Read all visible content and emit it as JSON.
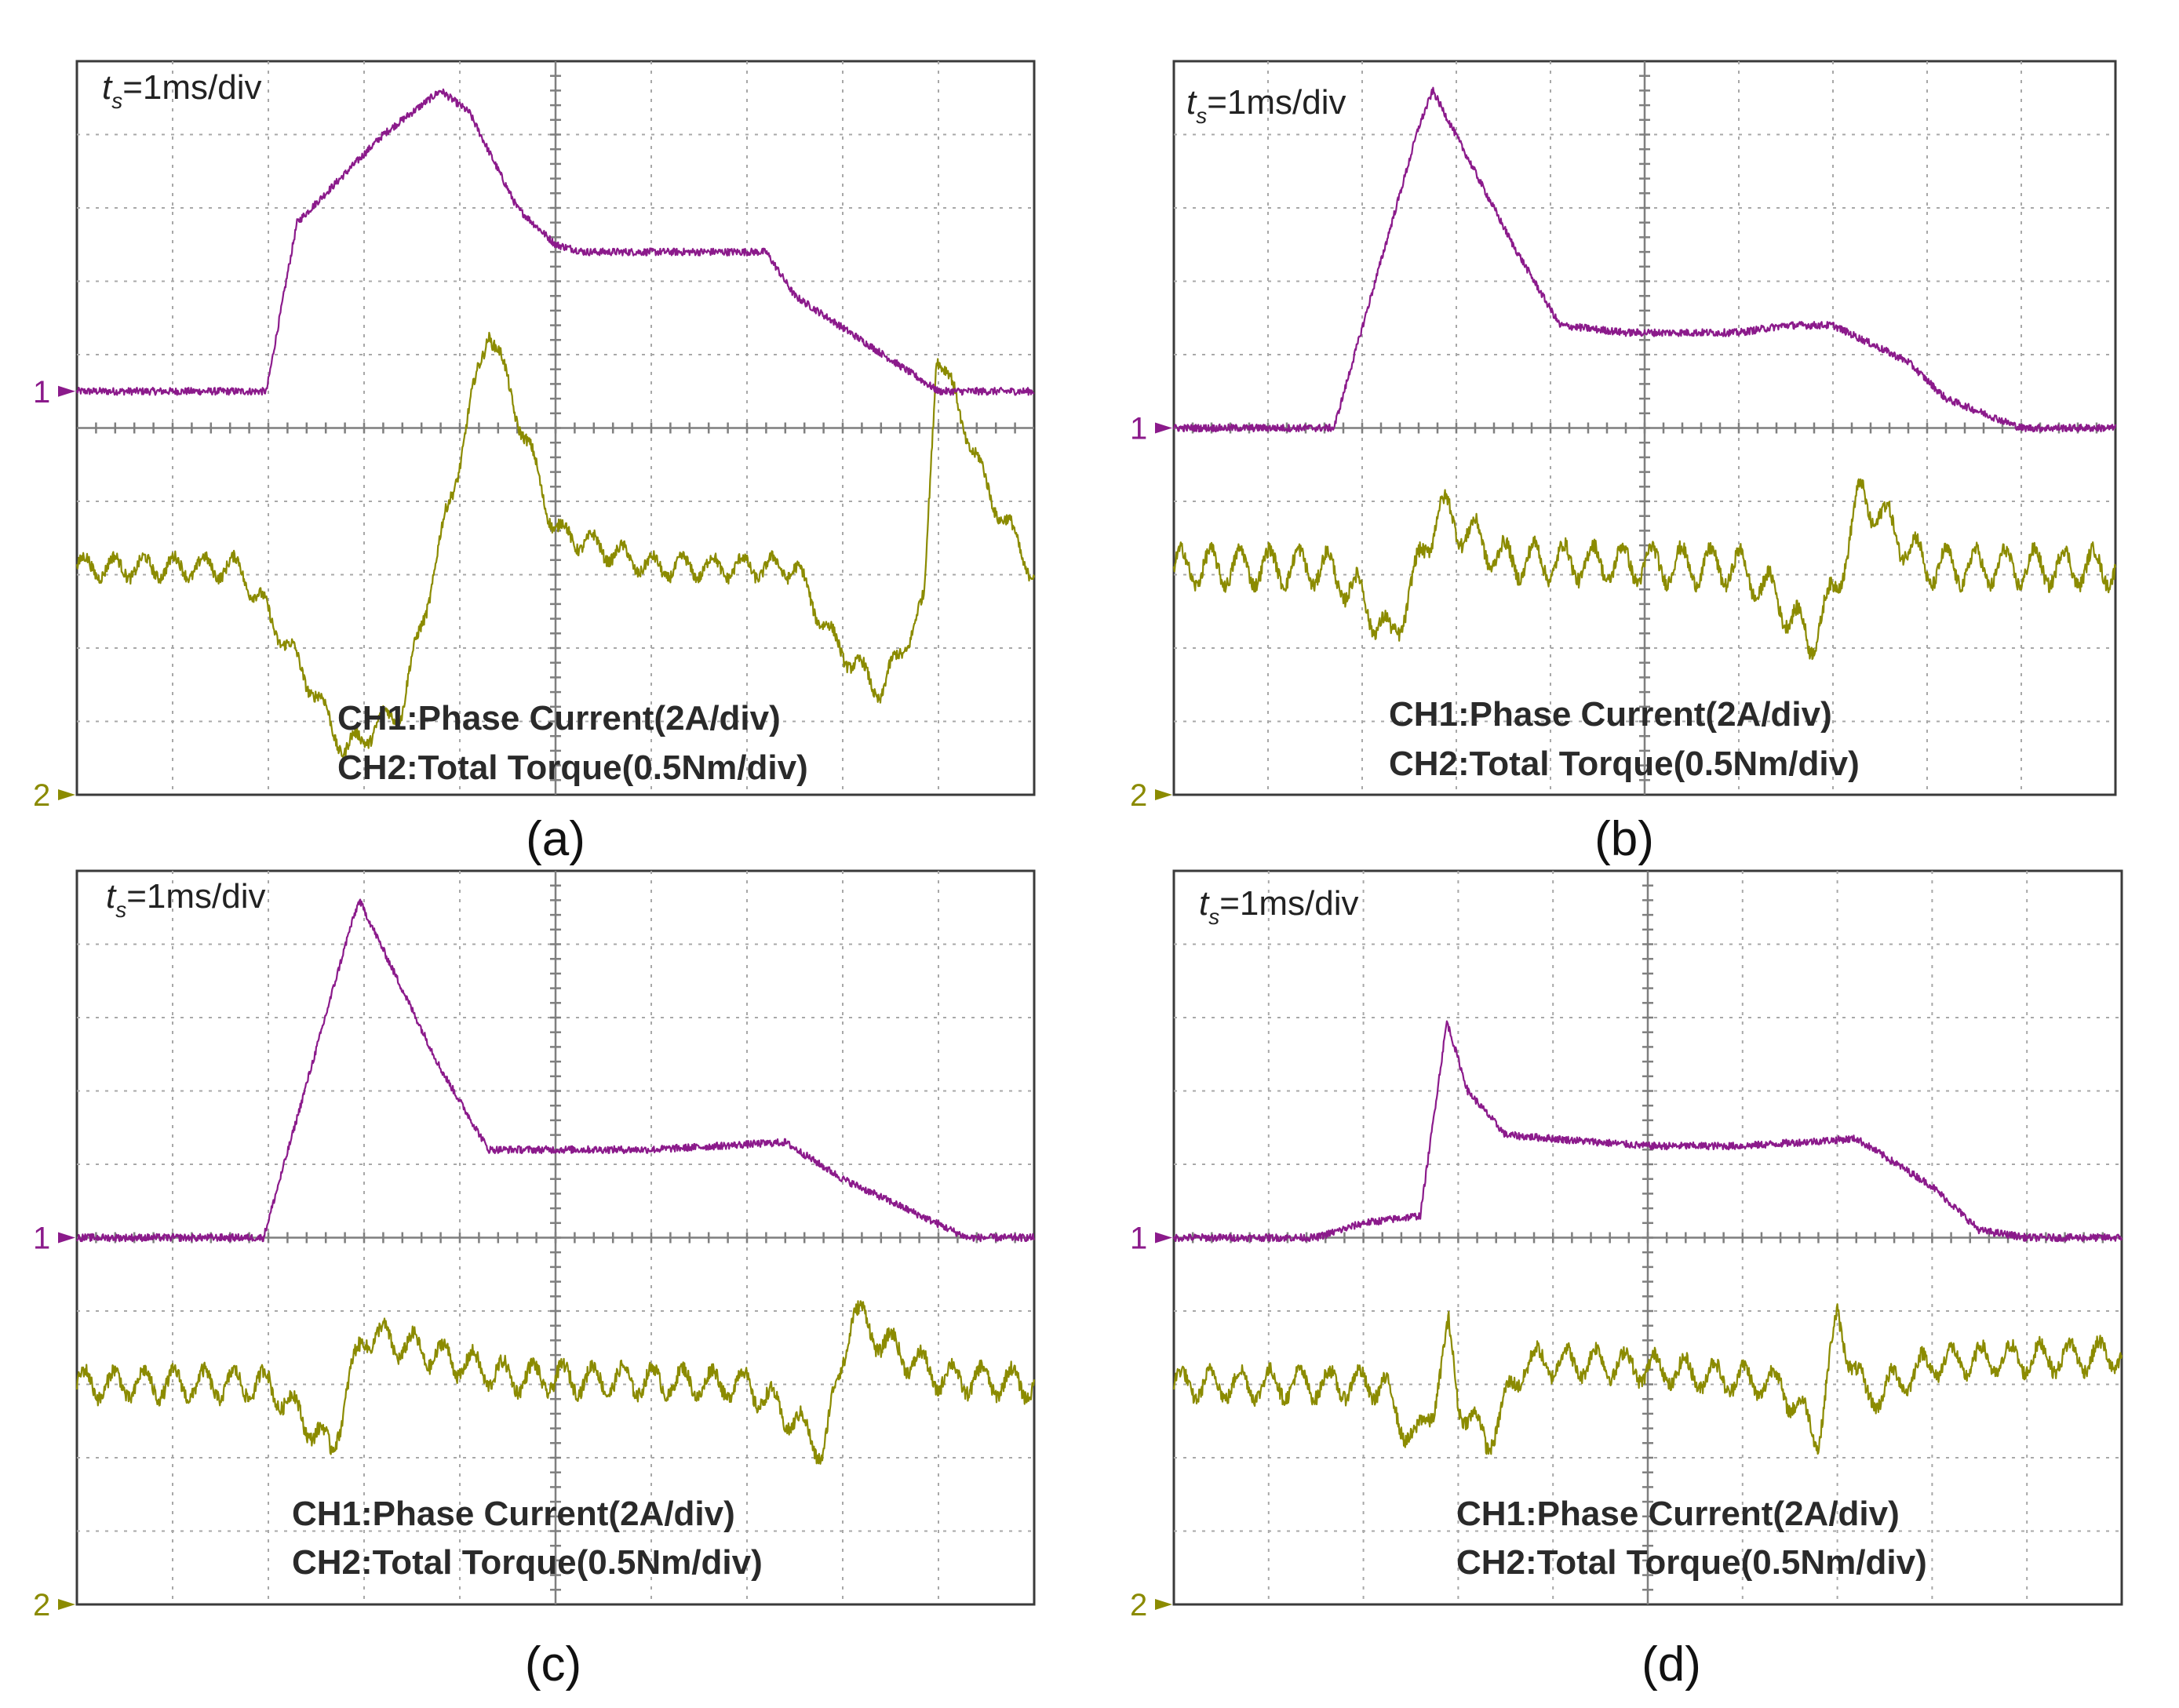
{
  "colors": {
    "ch1": "#8b1a8b",
    "ch2": "#8b8b00"
  },
  "chart_data": [
    {
      "type": "line",
      "panel_id": "a",
      "caption": "(a)",
      "time_scale_prefix": "t",
      "time_scale_sub": "s",
      "time_scale_value": "=1ms/div",
      "x_unit": "div",
      "xlim": [
        0,
        10
      ],
      "ylim_div": [
        -5,
        5
      ],
      "ch1_label": "CH1:Phase Current(2A/div)",
      "ch2_label": "CH2:Total Torque(0.5Nm/div)",
      "ch1_marker": "1",
      "ch2_marker": "2",
      "ch1_ground_div": 0.5,
      "ch2_ground_div": -5,
      "series": [
        {
          "name": "CH1",
          "noise": 0.05,
          "ripple": 0,
          "x": [
            0,
            1.98,
            2.2,
            2.3,
            2.6,
            3.2,
            3.8,
            4.1,
            4.6,
            5.0,
            5.3,
            6.0,
            7.2,
            7.5,
            9.0,
            10.0
          ],
          "y": [
            0.5,
            0.5,
            2.1,
            2.8,
            3.2,
            4.0,
            4.6,
            4.3,
            3.0,
            2.5,
            2.4,
            2.4,
            2.4,
            1.8,
            0.5,
            0.5
          ]
        },
        {
          "name": "CH2",
          "noise": 0.08,
          "ripple": 0.15,
          "x": [
            0,
            1.7,
            2.4,
            2.8,
            3.4,
            3.95,
            4.3,
            5.0,
            6.0,
            7.5,
            7.9,
            8.4,
            8.85,
            8.98,
            9.5,
            10.0
          ],
          "y": [
            -1.9,
            -1.9,
            -3.4,
            -4.4,
            -3.8,
            -0.7,
            1.4,
            -1.4,
            -1.9,
            -1.9,
            -2.9,
            -3.6,
            -2.4,
            1.1,
            -0.8,
            -2.0
          ]
        }
      ]
    },
    {
      "type": "line",
      "panel_id": "b",
      "caption": "(b)",
      "time_scale_prefix": "t",
      "time_scale_sub": "s",
      "time_scale_value": "=1ms/div",
      "x_unit": "div",
      "xlim": [
        0,
        10
      ],
      "ylim_div": [
        -5,
        5
      ],
      "ch1_label": "CH1:Phase Current(2A/div)",
      "ch2_label": "CH2:Total Torque(0.5Nm/div)",
      "ch1_marker": "1",
      "ch2_marker": "2",
      "ch1_ground_div": 0,
      "ch2_ground_div": -5,
      "series": [
        {
          "name": "CH1",
          "noise": 0.05,
          "ripple": 0,
          "x": [
            0,
            1.7,
            2.6,
            2.75,
            3.6,
            4.1,
            4.8,
            6.0,
            6.5,
            7.0,
            7.8,
            8.2,
            9.0,
            10.0
          ],
          "y": [
            0,
            0,
            4.1,
            4.6,
            2.5,
            1.4,
            1.3,
            1.3,
            1.4,
            1.4,
            0.9,
            0.4,
            0,
            0
          ]
        },
        {
          "name": "CH2",
          "noise": 0.1,
          "ripple": 0.25,
          "x": [
            0,
            1.6,
            2.0,
            2.3,
            2.55,
            2.8,
            3.5,
            6.0,
            6.4,
            6.75,
            7.0,
            7.3,
            8.0,
            10.0
          ],
          "y": [
            -1.9,
            -1.9,
            -2.3,
            -2.9,
            -2.1,
            -1.1,
            -1.8,
            -1.9,
            -2.3,
            -2.9,
            -2.3,
            -0.9,
            -1.9,
            -1.9
          ]
        }
      ]
    },
    {
      "type": "line",
      "panel_id": "c",
      "caption": "(c)",
      "time_scale_prefix": "t",
      "time_scale_sub": "s",
      "time_scale_value": "=1ms/div",
      "x_unit": "div",
      "xlim": [
        0,
        10
      ],
      "ylim_div": [
        -5,
        5
      ],
      "ch1_label": "CH1:Phase Current(2A/div)",
      "ch2_label": "CH2:Total Torque(0.5Nm/div)",
      "ch1_marker": "1",
      "ch2_marker": "2",
      "ch1_ground_div": 0,
      "ch2_ground_div": -5,
      "series": [
        {
          "name": "CH1",
          "noise": 0.05,
          "ripple": 0,
          "x": [
            0,
            1.95,
            2.85,
            2.95,
            3.8,
            4.3,
            5.0,
            6.0,
            7.4,
            8.0,
            9.3,
            10.0
          ],
          "y": [
            0,
            0,
            4.2,
            4.6,
            2.3,
            1.2,
            1.2,
            1.2,
            1.3,
            0.8,
            0,
            0
          ]
        },
        {
          "name": "CH2",
          "noise": 0.1,
          "ripple": 0.2,
          "x": [
            0,
            2.0,
            2.4,
            2.65,
            3.0,
            3.5,
            4.5,
            7.0,
            7.5,
            7.8,
            8.1,
            8.4,
            9.0,
            10.0
          ],
          "y": [
            -2.0,
            -2.0,
            -2.5,
            -2.9,
            -1.3,
            -1.5,
            -1.9,
            -2.0,
            -2.5,
            -2.9,
            -1.0,
            -1.4,
            -1.9,
            -2.0
          ]
        }
      ]
    },
    {
      "type": "line",
      "panel_id": "d",
      "caption": "(d)",
      "time_scale_prefix": "t",
      "time_scale_sub": "s",
      "time_scale_value": "=1ms/div",
      "x_unit": "div",
      "xlim": [
        0,
        10
      ],
      "ylim_div": [
        -5,
        5
      ],
      "ch1_label": "CH1:Phase Current(2A/div)",
      "ch2_label": "CH2:Total Torque(0.5Nm/div)",
      "ch1_marker": "1",
      "ch2_marker": "2",
      "ch1_ground_div": 0,
      "ch2_ground_div": -5,
      "series": [
        {
          "name": "CH1",
          "noise": 0.05,
          "ripple": 0,
          "x": [
            0,
            1.5,
            2.0,
            2.6,
            2.88,
            3.1,
            3.5,
            5.0,
            6.0,
            6.6,
            7.2,
            8.0,
            8.5,
            9.0,
            10.0
          ],
          "y": [
            0,
            0,
            0.2,
            0.3,
            2.95,
            2.0,
            1.4,
            1.25,
            1.25,
            1.3,
            1.35,
            0.7,
            0.1,
            0,
            0
          ]
        },
        {
          "name": "CH2",
          "noise": 0.1,
          "ripple": 0.2,
          "x": [
            0,
            2.2,
            2.35,
            2.55,
            2.75,
            2.9,
            3.0,
            3.3,
            3.7,
            4.5,
            6.4,
            6.8,
            7.0,
            7.3,
            8.0,
            10.0
          ],
          "y": [
            -2.0,
            -2.0,
            -2.4,
            -2.8,
            -2.2,
            -1.3,
            -2.2,
            -2.8,
            -1.7,
            -1.7,
            -2.0,
            -2.7,
            -1.1,
            -2.2,
            -1.7,
            -1.6
          ]
        }
      ]
    }
  ]
}
